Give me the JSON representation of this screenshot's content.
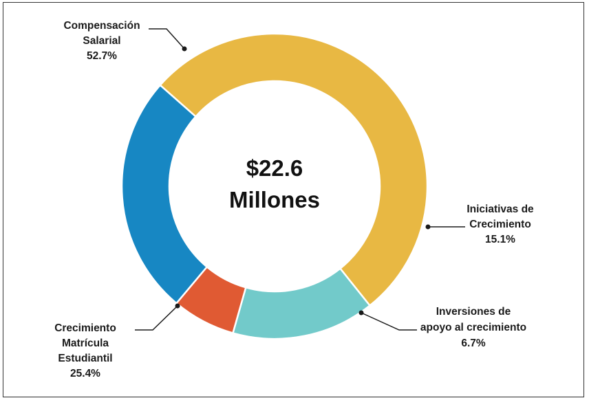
{
  "chart_data": {
    "type": "pie",
    "variant": "donut",
    "center_label": [
      "$22.6",
      "Millones"
    ],
    "slices": [
      {
        "name": "Compensación Salarial",
        "label_lines": [
          "Compensación",
          "Salarial"
        ],
        "value": 52.7,
        "value_label": "52.7%",
        "color": "#E8B843"
      },
      {
        "name": "Iniciativas de Crecimiento",
        "label_lines": [
          "Iniciativas de",
          "Crecimiento"
        ],
        "value": 15.1,
        "value_label": "15.1%",
        "color": "#72CACA"
      },
      {
        "name": "Inversiones de apoyo al crecimiento",
        "label_lines": [
          "Inversiones de",
          "apoyo al crecimiento"
        ],
        "value": 6.7,
        "value_label": "6.7%",
        "color": "#E05A33"
      },
      {
        "name": "Crecimiento Matrícula Estudiantil",
        "label_lines": [
          "Crecimiento",
          "Matrícula",
          "Estudiantil"
        ],
        "value": 25.4,
        "value_label": "25.4%",
        "color": "#1787C3"
      }
    ]
  }
}
